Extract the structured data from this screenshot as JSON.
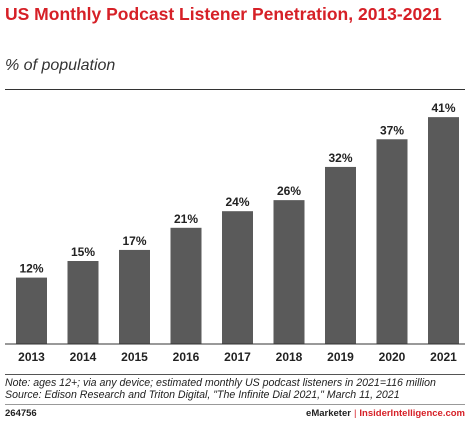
{
  "chart_data": {
    "type": "bar",
    "title": "US Monthly Podcast Listener Penetration, 2013-2021",
    "subtitle": "% of population",
    "categories": [
      "2013",
      "2014",
      "2015",
      "2016",
      "2017",
      "2018",
      "2019",
      "2020",
      "2021"
    ],
    "values": [
      12,
      15,
      17,
      21,
      24,
      26,
      32,
      37,
      41
    ],
    "value_labels": [
      "12%",
      "15%",
      "17%",
      "21%",
      "24%",
      "26%",
      "32%",
      "37%",
      "41%"
    ],
    "ylim": [
      0,
      45
    ],
    "grid": false,
    "bar_color": "#5a5a5a"
  },
  "note": "Note: ages 12+; via any device; estimated monthly US podcast listeners in 2021=116 million",
  "source": "Source: Edison Research and Triton Digital, \"The Infinite Dial 2021,\" March 11, 2021",
  "footer": {
    "code": "264756",
    "brand": "eMarketer",
    "site": "InsiderIntelligence.com"
  },
  "colors": {
    "accent": "#d62027"
  }
}
